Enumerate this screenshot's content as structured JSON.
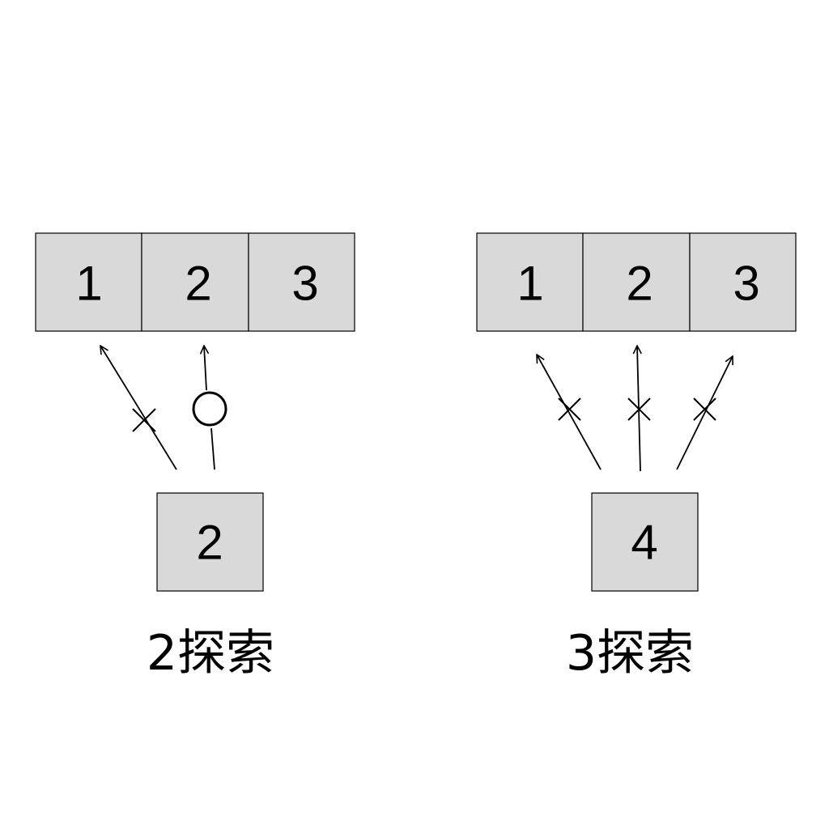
{
  "panels": [
    {
      "top_row": [
        "1",
        "2",
        "3"
      ],
      "bottom_cell": "2",
      "caption": "2探索",
      "probes": [
        {
          "target": "1",
          "mark": "cross"
        },
        {
          "target": "2",
          "mark": "circle"
        }
      ]
    },
    {
      "top_row": [
        "1",
        "2",
        "3"
      ],
      "bottom_cell": "4",
      "caption": "3探索",
      "probes": [
        {
          "target": "1",
          "mark": "cross"
        },
        {
          "target": "2",
          "mark": "cross"
        },
        {
          "target": "3",
          "mark": "cross"
        }
      ]
    }
  ]
}
